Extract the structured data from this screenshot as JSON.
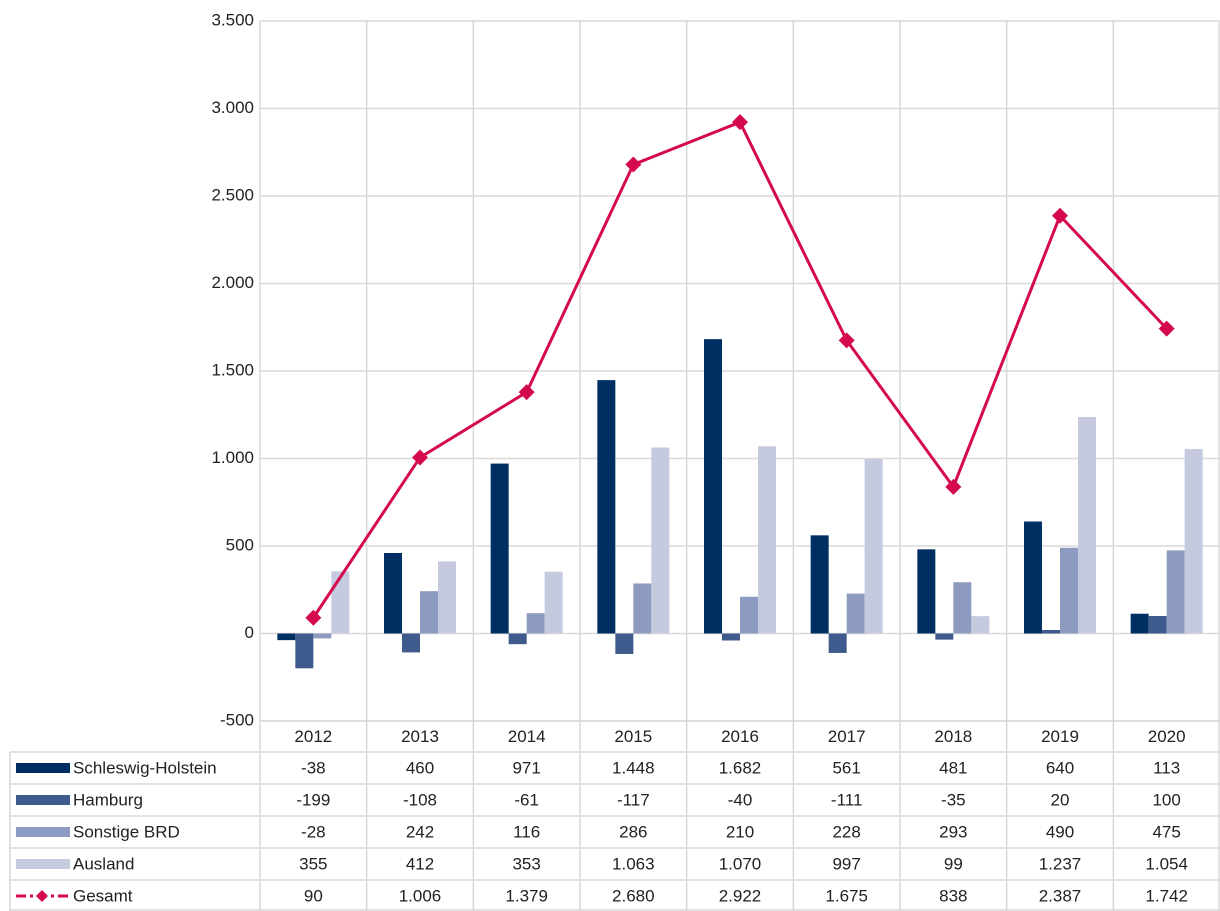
{
  "chart_data": {
    "type": "bar",
    "categories": [
      "2012",
      "2013",
      "2014",
      "2015",
      "2016",
      "2017",
      "2018",
      "2019",
      "2020"
    ],
    "series": [
      {
        "name": "Schleswig-Holstein",
        "color": "#003063",
        "values": [
          -38,
          460,
          971,
          1448,
          1682,
          561,
          481,
          640,
          113
        ],
        "value_labels": [
          "-38",
          "460",
          "971",
          "1.448",
          "1.682",
          "561",
          "481",
          "640",
          "113"
        ]
      },
      {
        "name": "Hamburg",
        "color": "#3f5a8c",
        "values": [
          -199,
          -108,
          -61,
          -117,
          -40,
          -111,
          -35,
          20,
          100
        ],
        "value_labels": [
          "-199",
          "-108",
          "-61",
          "-117",
          "-40",
          "-111",
          "-35",
          "20",
          "100"
        ]
      },
      {
        "name": "Sonstige BRD",
        "color": "#8e9bc0",
        "values": [
          -28,
          242,
          116,
          286,
          210,
          228,
          293,
          490,
          475
        ],
        "value_labels": [
          "-28",
          "242",
          "116",
          "286",
          "210",
          "228",
          "293",
          "490",
          "475"
        ]
      },
      {
        "name": "Ausland",
        "color": "#c5cadf",
        "values": [
          355,
          412,
          353,
          1063,
          1070,
          997,
          99,
          1237,
          1054
        ],
        "value_labels": [
          "355",
          "412",
          "353",
          "1.063",
          "1.070",
          "997",
          "99",
          "1.237",
          "1.054"
        ]
      },
      {
        "name": "Gesamt",
        "type": "line",
        "color": "#d4094f",
        "values": [
          90,
          1006,
          1379,
          2680,
          2922,
          1675,
          838,
          2387,
          1742
        ],
        "value_labels": [
          "90",
          "1.006",
          "1.379",
          "2.680",
          "2.922",
          "1.675",
          "838",
          "2.387",
          "1.742"
        ]
      }
    ],
    "ylim": [
      -500,
      3500
    ],
    "yticks": [
      -500,
      0,
      500,
      {
        "value": 1000,
        "label": "1.000"
      },
      {
        "value": 1500,
        "label": "1.500"
      },
      {
        "value": 2000,
        "label": "2.000"
      },
      {
        "value": 2500,
        "label": "2.500"
      },
      {
        "value": 3000,
        "label": "3.000"
      },
      {
        "value": 3500,
        "label": "3.500"
      }
    ],
    "grid": true
  }
}
